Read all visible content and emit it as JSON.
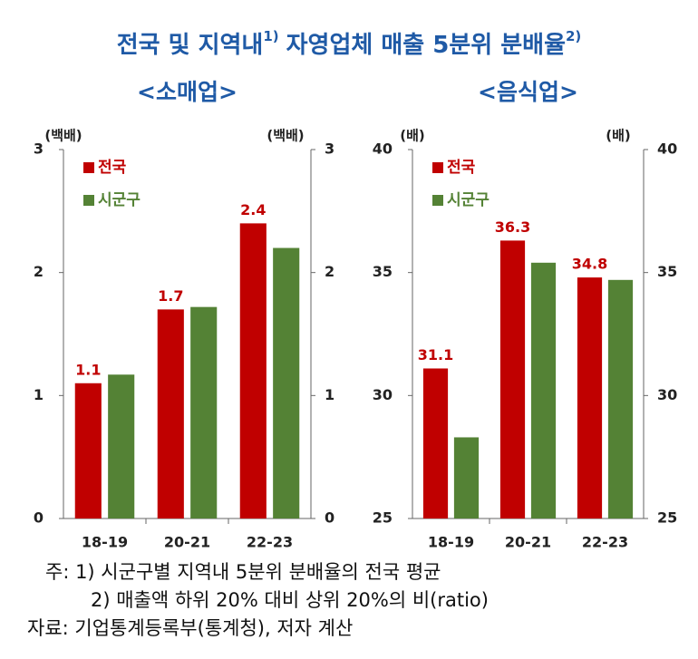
{
  "title": [
    {
      "text": "전국 및 지역내",
      "sup": "1)"
    },
    {
      "text": "자영업체 매출 5분위 분배율",
      "sup": "2)"
    }
  ],
  "notes": [
    "주: 1) 시군구별 지역내 5분위 분배율의 전국 평균",
    "2) 매출액 하위 20% 대비 상위 20%의 비(ratio)",
    "자료: 기업통계등록부(통계청), 저자 계산"
  ],
  "chart_data": [
    {
      "type": "bar",
      "subtitle": "<소매업>",
      "y_label": "(백배)",
      "y2_label": "(백배)",
      "categories": [
        "18-19",
        "20-21",
        "22-23"
      ],
      "series": [
        {
          "name": "전국",
          "color": "#c00000",
          "values": [
            1.1,
            1.7,
            2.4
          ],
          "show_labels": true
        },
        {
          "name": "시군구",
          "color": "#548235",
          "values": [
            1.17,
            1.72,
            2.2
          ]
        }
      ],
      "ylim": [
        0,
        3
      ],
      "yticks": [
        0,
        1,
        2,
        3
      ],
      "y2lim": [
        0,
        3
      ],
      "y2ticks": [
        0,
        1,
        2,
        3
      ],
      "legend": "top-left"
    },
    {
      "type": "bar",
      "subtitle": "<음식업>",
      "y_label": "(배)",
      "y2_label": "(배)",
      "categories": [
        "18-19",
        "20-21",
        "22-23"
      ],
      "series": [
        {
          "name": "전국",
          "color": "#c00000",
          "values": [
            31.1,
            36.3,
            34.8
          ],
          "show_labels": true
        },
        {
          "name": "시군구",
          "color": "#548235",
          "values": [
            28.3,
            35.4,
            34.7
          ]
        }
      ],
      "ylim": [
        25,
        40
      ],
      "yticks": [
        25,
        30,
        35,
        40
      ],
      "y2lim": [
        25,
        40
      ],
      "y2ticks": [
        25,
        30,
        35,
        40
      ],
      "legend": "top-left"
    }
  ]
}
